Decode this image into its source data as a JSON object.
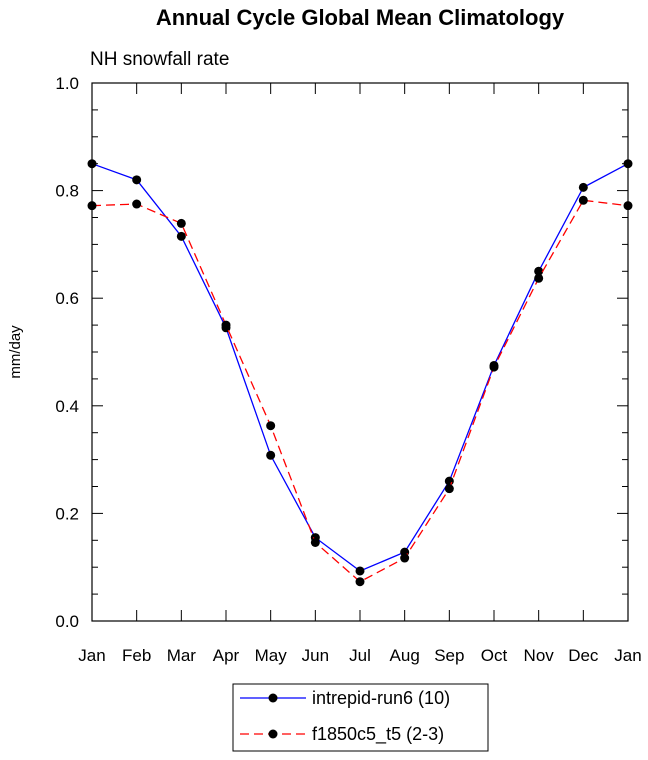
{
  "chart_data": {
    "type": "line",
    "title": "Annual Cycle Global Mean Climatology",
    "subtitle": "NH snowfall rate",
    "xlabel": "",
    "ylabel": "mm/day",
    "categories": [
      "Jan",
      "Feb",
      "Mar",
      "Apr",
      "May",
      "Jun",
      "Jul",
      "Aug",
      "Sep",
      "Oct",
      "Nov",
      "Dec",
      "Jan"
    ],
    "ylim": [
      0.0,
      1.0
    ],
    "yticks": [
      "0.0",
      "0.2",
      "0.4",
      "0.6",
      "0.8",
      "1.0"
    ],
    "ytick_values": [
      0.0,
      0.2,
      0.4,
      0.6,
      0.8,
      1.0
    ],
    "series": [
      {
        "name": "intrepid-run6 (10)",
        "color": "#0000ff",
        "dash": "solid",
        "values": [
          0.85,
          0.82,
          0.715,
          0.545,
          0.308,
          0.155,
          0.093,
          0.128,
          0.26,
          0.475,
          0.65,
          0.806,
          0.85
        ]
      },
      {
        "name": "f1850c5_t5 (2-3)",
        "color": "#ff0000",
        "dash": "dashed",
        "values": [
          0.772,
          0.775,
          0.739,
          0.55,
          0.363,
          0.146,
          0.073,
          0.117,
          0.246,
          0.472,
          0.637,
          0.782,
          0.772
        ]
      }
    ],
    "legend_position": "bottom-center"
  }
}
